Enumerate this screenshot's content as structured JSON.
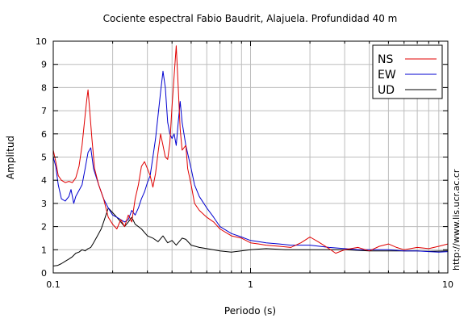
{
  "chart_data": {
    "type": "line",
    "title": "Cociente espectral Fabio Baudrit, Alajuela. Profundidad 40 m",
    "xlabel": "Periodo (s)",
    "ylabel": "Amplitud",
    "xscale": "log",
    "xlim": [
      0.1,
      10
    ],
    "ylim": [
      0,
      10
    ],
    "xticks": [
      {
        "value": 0.1,
        "label": "0.1"
      },
      {
        "value": 1,
        "label": "1"
      },
      {
        "value": 10,
        "label": "10"
      }
    ],
    "yticks": [
      0,
      1,
      2,
      3,
      4,
      5,
      6,
      7,
      8,
      9,
      10
    ],
    "grid": true,
    "legend_position": "top-right",
    "credit": "http://www.lis.ucr.ac.cr",
    "series": [
      {
        "name": "NS",
        "color": "#e00000",
        "points": [
          [
            0.1,
            5.3
          ],
          [
            0.103,
            4.8
          ],
          [
            0.106,
            4.2
          ],
          [
            0.11,
            4.0
          ],
          [
            0.115,
            3.9
          ],
          [
            0.12,
            3.95
          ],
          [
            0.125,
            3.9
          ],
          [
            0.13,
            4.1
          ],
          [
            0.135,
            4.6
          ],
          [
            0.14,
            5.5
          ],
          [
            0.145,
            6.8
          ],
          [
            0.148,
            7.5
          ],
          [
            0.15,
            7.9
          ],
          [
            0.153,
            7.0
          ],
          [
            0.157,
            5.8
          ],
          [
            0.162,
            4.5
          ],
          [
            0.17,
            3.8
          ],
          [
            0.18,
            3.2
          ],
          [
            0.19,
            2.4
          ],
          [
            0.2,
            2.1
          ],
          [
            0.21,
            1.9
          ],
          [
            0.22,
            2.3
          ],
          [
            0.23,
            2.0
          ],
          [
            0.24,
            2.5
          ],
          [
            0.25,
            2.2
          ],
          [
            0.26,
            3.2
          ],
          [
            0.27,
            3.8
          ],
          [
            0.28,
            4.6
          ],
          [
            0.29,
            4.8
          ],
          [
            0.3,
            4.5
          ],
          [
            0.31,
            4.2
          ],
          [
            0.32,
            3.7
          ],
          [
            0.33,
            4.3
          ],
          [
            0.34,
            5.2
          ],
          [
            0.35,
            6.0
          ],
          [
            0.36,
            5.5
          ],
          [
            0.37,
            5.0
          ],
          [
            0.38,
            4.9
          ],
          [
            0.39,
            5.6
          ],
          [
            0.4,
            7.2
          ],
          [
            0.41,
            8.5
          ],
          [
            0.42,
            9.8
          ],
          [
            0.43,
            8.0
          ],
          [
            0.44,
            6.2
          ],
          [
            0.45,
            5.3
          ],
          [
            0.47,
            5.5
          ],
          [
            0.48,
            4.5
          ],
          [
            0.5,
            3.8
          ],
          [
            0.52,
            3.0
          ],
          [
            0.55,
            2.7
          ],
          [
            0.6,
            2.4
          ],
          [
            0.65,
            2.2
          ],
          [
            0.7,
            1.9
          ],
          [
            0.8,
            1.6
          ],
          [
            0.9,
            1.5
          ],
          [
            1.0,
            1.3
          ],
          [
            1.1,
            1.25
          ],
          [
            1.2,
            1.2
          ],
          [
            1.4,
            1.15
          ],
          [
            1.6,
            1.1
          ],
          [
            1.8,
            1.3
          ],
          [
            2.0,
            1.55
          ],
          [
            2.2,
            1.35
          ],
          [
            2.5,
            1.05
          ],
          [
            2.7,
            0.85
          ],
          [
            3.0,
            1.0
          ],
          [
            3.5,
            1.1
          ],
          [
            4.0,
            0.95
          ],
          [
            4.5,
            1.15
          ],
          [
            5.0,
            1.25
          ],
          [
            5.5,
            1.1
          ],
          [
            6.0,
            1.0
          ],
          [
            7.0,
            1.1
          ],
          [
            8.0,
            1.05
          ],
          [
            9.0,
            1.15
          ],
          [
            10.0,
            1.25
          ]
        ]
      },
      {
        "name": "EW",
        "color": "#0000d0",
        "points": [
          [
            0.1,
            5.0
          ],
          [
            0.103,
            4.6
          ],
          [
            0.106,
            3.8
          ],
          [
            0.11,
            3.2
          ],
          [
            0.115,
            3.1
          ],
          [
            0.12,
            3.3
          ],
          [
            0.123,
            3.6
          ],
          [
            0.127,
            3.0
          ],
          [
            0.13,
            3.3
          ],
          [
            0.14,
            3.8
          ],
          [
            0.145,
            4.5
          ],
          [
            0.15,
            5.2
          ],
          [
            0.155,
            5.4
          ],
          [
            0.16,
            4.5
          ],
          [
            0.17,
            3.8
          ],
          [
            0.18,
            3.2
          ],
          [
            0.19,
            2.8
          ],
          [
            0.2,
            2.5
          ],
          [
            0.21,
            2.4
          ],
          [
            0.22,
            2.3
          ],
          [
            0.23,
            2.2
          ],
          [
            0.24,
            2.3
          ],
          [
            0.25,
            2.7
          ],
          [
            0.26,
            2.5
          ],
          [
            0.27,
            2.8
          ],
          [
            0.28,
            3.2
          ],
          [
            0.29,
            3.5
          ],
          [
            0.3,
            3.9
          ],
          [
            0.31,
            4.2
          ],
          [
            0.32,
            5.0
          ],
          [
            0.33,
            5.8
          ],
          [
            0.34,
            6.8
          ],
          [
            0.35,
            7.8
          ],
          [
            0.36,
            8.7
          ],
          [
            0.37,
            8.0
          ],
          [
            0.38,
            6.5
          ],
          [
            0.39,
            6.0
          ],
          [
            0.4,
            5.8
          ],
          [
            0.41,
            6.0
          ],
          [
            0.42,
            5.5
          ],
          [
            0.43,
            6.5
          ],
          [
            0.44,
            7.4
          ],
          [
            0.45,
            6.5
          ],
          [
            0.47,
            5.5
          ],
          [
            0.5,
            4.5
          ],
          [
            0.52,
            3.8
          ],
          [
            0.55,
            3.3
          ],
          [
            0.6,
            2.8
          ],
          [
            0.65,
            2.4
          ],
          [
            0.7,
            2.0
          ],
          [
            0.8,
            1.7
          ],
          [
            0.9,
            1.55
          ],
          [
            1.0,
            1.4
          ],
          [
            1.1,
            1.35
          ],
          [
            1.2,
            1.3
          ],
          [
            1.4,
            1.25
          ],
          [
            1.6,
            1.2
          ],
          [
            2.0,
            1.2
          ],
          [
            2.5,
            1.1
          ],
          [
            3.0,
            1.05
          ],
          [
            3.5,
            1.0
          ],
          [
            4.0,
            1.0
          ],
          [
            5.0,
            1.0
          ],
          [
            6.0,
            0.95
          ],
          [
            7.0,
            0.95
          ],
          [
            8.0,
            0.92
          ],
          [
            9.0,
            0.9
          ],
          [
            10.0,
            0.92
          ]
        ]
      },
      {
        "name": "UD",
        "color": "#000000",
        "points": [
          [
            0.1,
            0.3
          ],
          [
            0.105,
            0.32
          ],
          [
            0.11,
            0.4
          ],
          [
            0.115,
            0.5
          ],
          [
            0.12,
            0.6
          ],
          [
            0.125,
            0.7
          ],
          [
            0.13,
            0.85
          ],
          [
            0.135,
            0.9
          ],
          [
            0.14,
            1.0
          ],
          [
            0.145,
            0.95
          ],
          [
            0.15,
            1.05
          ],
          [
            0.155,
            1.1
          ],
          [
            0.16,
            1.3
          ],
          [
            0.165,
            1.5
          ],
          [
            0.17,
            1.7
          ],
          [
            0.175,
            1.9
          ],
          [
            0.18,
            2.2
          ],
          [
            0.185,
            2.5
          ],
          [
            0.19,
            2.8
          ],
          [
            0.2,
            2.6
          ],
          [
            0.21,
            2.4
          ],
          [
            0.22,
            2.2
          ],
          [
            0.23,
            2.0
          ],
          [
            0.24,
            2.2
          ],
          [
            0.25,
            2.4
          ],
          [
            0.26,
            2.1
          ],
          [
            0.27,
            2.0
          ],
          [
            0.28,
            1.9
          ],
          [
            0.3,
            1.6
          ],
          [
            0.32,
            1.5
          ],
          [
            0.34,
            1.35
          ],
          [
            0.36,
            1.6
          ],
          [
            0.38,
            1.3
          ],
          [
            0.4,
            1.4
          ],
          [
            0.42,
            1.2
          ],
          [
            0.45,
            1.5
          ],
          [
            0.47,
            1.45
          ],
          [
            0.5,
            1.2
          ],
          [
            0.55,
            1.1
          ],
          [
            0.6,
            1.05
          ],
          [
            0.7,
            0.95
          ],
          [
            0.8,
            0.9
          ],
          [
            1.0,
            1.0
          ],
          [
            1.2,
            1.05
          ],
          [
            1.5,
            1.0
          ],
          [
            2.0,
            1.0
          ],
          [
            3.0,
            1.0
          ],
          [
            4.0,
            0.95
          ],
          [
            5.0,
            0.95
          ],
          [
            6.0,
            0.95
          ],
          [
            7.0,
            0.95
          ],
          [
            8.0,
            0.93
          ],
          [
            10.0,
            0.95
          ]
        ]
      }
    ]
  }
}
